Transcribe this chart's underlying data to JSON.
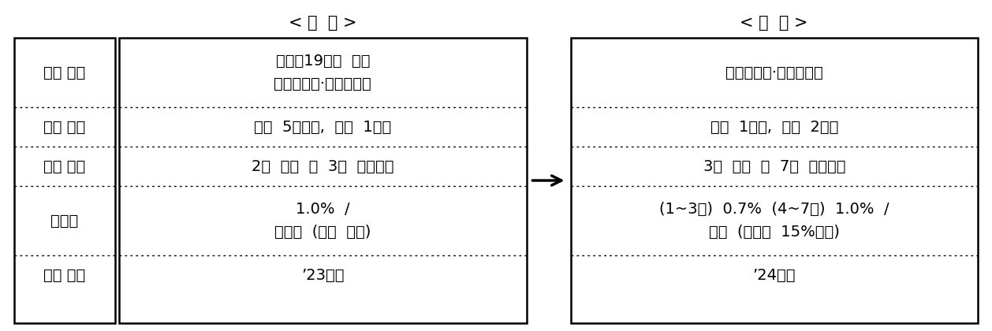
{
  "title_left": "< 기  존 >",
  "title_right": "< 개  편 >",
  "row_labels": [
    "지원 대상",
    "대환 한도",
    "상환 구조",
    "보증료",
    "신청 기한"
  ],
  "left_cells": [
    "코로나19피해  확인\n개인사업자·법인소기업",
    "개인  5천만원,  법인  1억원",
    "2년  거치  후  3년  분할상환",
    "1.0%  /\n일시납  (일부  연납)",
    "’23년말"
  ],
  "right_cells": [
    "개인사업자·법인소기업",
    "개인  1억원,  법인  2억원",
    "3년  거치  후  7년  분할상환",
    "(1~3년)  0.7%  (4~7년)  1.0%  /\n연납  (일시납  15%할인)",
    "’24년말"
  ],
  "background_color": "#ffffff",
  "border_color": "#000000",
  "text_color": "#000000",
  "font_size": 14,
  "label_font_size": 14,
  "title_font_size": 15
}
